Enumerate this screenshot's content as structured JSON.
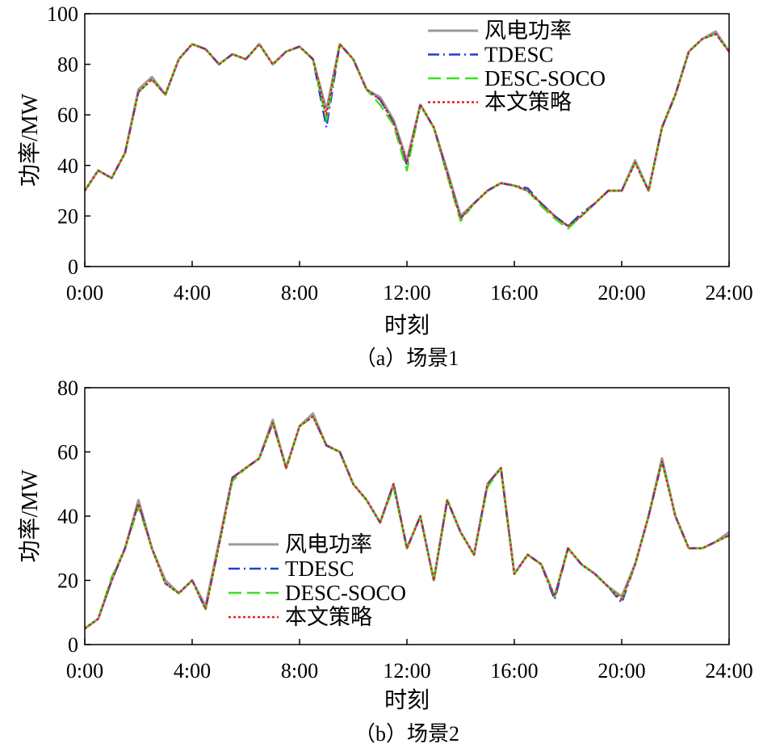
{
  "chart_data": [
    {
      "type": "line",
      "caption": "（a）场景1",
      "xlabel": "时刻",
      "ylabel": "功率/MW",
      "xticks": [
        "0:00",
        "4:00",
        "8:00",
        "12:00",
        "16:00",
        "20:00",
        "24:00"
      ],
      "xlim": [
        0,
        24
      ],
      "ylim": [
        0,
        100
      ],
      "yticks": [
        0,
        20,
        40,
        60,
        80,
        100
      ],
      "grid": false,
      "legend_position": "top-right",
      "x": [
        0,
        0.5,
        1,
        1.5,
        2,
        2.5,
        3,
        3.5,
        4,
        4.5,
        5,
        5.5,
        6,
        6.5,
        7,
        7.5,
        8,
        8.5,
        9,
        9.5,
        10,
        10.5,
        11,
        11.5,
        12,
        12.5,
        13,
        13.5,
        14,
        14.5,
        15,
        15.5,
        16,
        16.5,
        17,
        17.5,
        18,
        18.5,
        19,
        19.5,
        20,
        20.5,
        21,
        21.5,
        22,
        22.5,
        23,
        23.5,
        24
      ],
      "series": [
        {
          "name": "风电功率",
          "color": "#9a9a9a",
          "style": "solid",
          "values": [
            30,
            38,
            35,
            45,
            70,
            75,
            68,
            82,
            88,
            86,
            80,
            84,
            82,
            88,
            80,
            85,
            87,
            82,
            62,
            88,
            82,
            70,
            67,
            58,
            42,
            64,
            55,
            38,
            20,
            25,
            30,
            33,
            32,
            30,
            25,
            20,
            16,
            20,
            25,
            30,
            30,
            42,
            30,
            55,
            68,
            85,
            90,
            93,
            85
          ]
        },
        {
          "name": "TDESC",
          "color": "#1f3fd6",
          "style": "dashdot",
          "values": [
            30,
            38,
            35,
            45,
            69,
            74,
            68,
            82,
            88,
            86,
            80,
            84,
            82,
            88,
            80,
            85,
            87,
            82,
            55,
            88,
            82,
            70,
            66,
            57,
            40,
            64,
            55,
            37,
            19,
            25,
            30,
            33,
            32,
            31,
            25,
            20,
            16,
            21,
            25,
            30,
            30,
            41,
            30,
            55,
            68,
            85,
            90,
            92,
            85
          ]
        },
        {
          "name": "DESC-SOCO",
          "color": "#39e21e",
          "style": "dashed",
          "values": [
            30,
            38,
            35,
            45,
            69,
            74,
            68,
            82,
            88,
            86,
            80,
            84,
            82,
            88,
            80,
            85,
            87,
            82,
            58,
            88,
            82,
            70,
            64,
            56,
            38,
            64,
            55,
            36,
            18,
            25,
            30,
            33,
            32,
            30,
            24,
            19,
            15,
            20,
            25,
            30,
            30,
            41,
            30,
            55,
            68,
            85,
            90,
            92,
            85
          ]
        },
        {
          "name": "本文策略",
          "color": "#e81c1c",
          "style": "dotted",
          "values": [
            30,
            38,
            35,
            45,
            69,
            74,
            68,
            82,
            88,
            86,
            80,
            84,
            82,
            88,
            80,
            85,
            87,
            82,
            60,
            88,
            82,
            70,
            66,
            57,
            41,
            64,
            55,
            37,
            19,
            25,
            30,
            33,
            32,
            30,
            25,
            20,
            16,
            20,
            25,
            30,
            30,
            41,
            30,
            55,
            68,
            85,
            90,
            92,
            85
          ]
        }
      ]
    },
    {
      "type": "line",
      "caption": "（b）场景2",
      "xlabel": "时刻",
      "ylabel": "功率/MW",
      "xticks": [
        "0:00",
        "4:00",
        "8:00",
        "12:00",
        "16:00",
        "20:00",
        "24:00"
      ],
      "xlim": [
        0,
        24
      ],
      "ylim": [
        0,
        80
      ],
      "yticks": [
        0,
        20,
        40,
        60,
        80
      ],
      "grid": false,
      "legend_position": "center-left",
      "x": [
        0,
        0.5,
        1,
        1.5,
        2,
        2.5,
        3,
        3.5,
        4,
        4.5,
        5,
        5.5,
        6,
        6.5,
        7,
        7.5,
        8,
        8.5,
        9,
        9.5,
        10,
        10.5,
        11,
        11.5,
        12,
        12.5,
        13,
        13.5,
        14,
        14.5,
        15,
        15.5,
        16,
        16.5,
        17,
        17.5,
        18,
        18.5,
        19,
        19.5,
        20,
        20.5,
        21,
        21.5,
        22,
        22.5,
        23,
        23.5,
        24
      ],
      "series": [
        {
          "name": "风电功率",
          "color": "#9a9a9a",
          "style": "solid",
          "values": [
            5,
            8,
            20,
            30,
            45,
            30,
            20,
            16,
            20,
            12,
            32,
            52,
            55,
            58,
            70,
            55,
            68,
            72,
            62,
            60,
            50,
            45,
            38,
            50,
            30,
            40,
            20,
            45,
            35,
            28,
            50,
            55,
            22,
            28,
            25,
            15,
            30,
            25,
            22,
            18,
            15,
            25,
            40,
            58,
            40,
            30,
            30,
            32,
            35
          ]
        },
        {
          "name": "TDESC",
          "color": "#1f3fd6",
          "style": "dashdot",
          "values": [
            5,
            8,
            20,
            30,
            44,
            30,
            19,
            16,
            20,
            11,
            31,
            52,
            55,
            58,
            69,
            55,
            68,
            71,
            62,
            60,
            50,
            45,
            38,
            50,
            30,
            40,
            20,
            45,
            35,
            28,
            50,
            55,
            22,
            28,
            25,
            14,
            30,
            25,
            22,
            18,
            13,
            25,
            40,
            57,
            40,
            30,
            30,
            32,
            34
          ]
        },
        {
          "name": "DESC-SOCO",
          "color": "#39e21e",
          "style": "dashed",
          "values": [
            5,
            8,
            21,
            30,
            43,
            30,
            19,
            16,
            20,
            11,
            31,
            51,
            55,
            58,
            69,
            55,
            68,
            71,
            62,
            60,
            50,
            45,
            38,
            49,
            30,
            40,
            20,
            45,
            35,
            28,
            49,
            55,
            22,
            28,
            25,
            15,
            30,
            25,
            22,
            18,
            14,
            25,
            40,
            57,
            40,
            30,
            30,
            32,
            34
          ]
        },
        {
          "name": "本文策略",
          "color": "#e81c1c",
          "style": "dotted",
          "values": [
            5,
            8,
            20,
            30,
            44,
            30,
            19,
            16,
            20,
            11,
            31,
            52,
            55,
            58,
            69,
            55,
            68,
            71,
            62,
            60,
            50,
            45,
            38,
            50,
            30,
            40,
            20,
            45,
            35,
            28,
            50,
            55,
            22,
            28,
            25,
            15,
            30,
            25,
            22,
            18,
            14,
            25,
            40,
            57,
            40,
            30,
            30,
            32,
            34
          ]
        }
      ]
    }
  ]
}
